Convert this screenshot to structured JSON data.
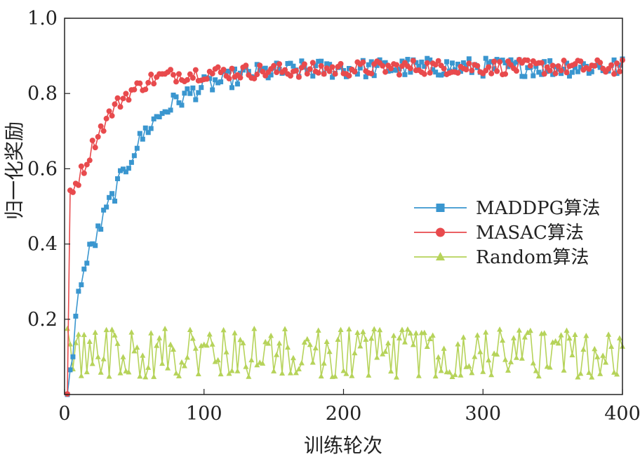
{
  "chart_data": {
    "type": "line",
    "xlabel": "训练轮次",
    "ylabel": "归一化奖励",
    "xlim": [
      0,
      400
    ],
    "ylim": [
      0,
      1.0
    ],
    "xticks": [
      {
        "value": 0,
        "label": "0"
      },
      {
        "value": 100,
        "label": "100"
      },
      {
        "value": 200,
        "label": "200"
      },
      {
        "value": 300,
        "label": "300"
      },
      {
        "value": 400,
        "label": "400"
      }
    ],
    "yticks": [
      {
        "value": 0.2,
        "label": "0.2"
      },
      {
        "value": 0.4,
        "label": "0.4"
      },
      {
        "value": 0.6,
        "label": "0.6"
      },
      {
        "value": 0.8,
        "label": "0.8"
      },
      {
        "value": 1.0,
        "label": "1.0"
      }
    ],
    "legend_position": "right-middle",
    "grid": false,
    "series": [
      {
        "name": "MADDPG算法",
        "color": "#3a96cf",
        "marker": "square",
        "anchors": {
          "x": [
            2,
            4,
            6,
            8,
            10,
            12,
            15,
            18,
            22,
            26,
            30,
            35,
            40,
            45,
            50,
            55,
            60,
            70,
            80,
            90,
            100,
            110,
            120,
            130,
            140,
            160,
            180,
            200,
            250,
            300,
            350,
            400
          ],
          "y": [
            0.0,
            0.05,
            0.12,
            0.2,
            0.26,
            0.31,
            0.34,
            0.38,
            0.41,
            0.45,
            0.49,
            0.53,
            0.57,
            0.61,
            0.65,
            0.68,
            0.71,
            0.75,
            0.78,
            0.8,
            0.82,
            0.83,
            0.84,
            0.85,
            0.855,
            0.86,
            0.865,
            0.865,
            0.87,
            0.87,
            0.87,
            0.87
          ]
        },
        "noise": 0.025
      },
      {
        "name": "MASAC算法",
        "color": "#e84a4d",
        "marker": "circle",
        "anchors": {
          "x": [
            2,
            3,
            5,
            8,
            12,
            16,
            20,
            25,
            30,
            35,
            40,
            45,
            50,
            55,
            60,
            70,
            80,
            100,
            150,
            200,
            250,
            300,
            350,
            400
          ],
          "y": [
            0.0,
            0.53,
            0.55,
            0.56,
            0.59,
            0.62,
            0.66,
            0.7,
            0.73,
            0.76,
            0.78,
            0.8,
            0.81,
            0.82,
            0.835,
            0.845,
            0.85,
            0.855,
            0.86,
            0.865,
            0.87,
            0.87,
            0.87,
            0.87
          ]
        },
        "noise": 0.02
      },
      {
        "name": "Random算法",
        "color": "#b6d35a",
        "marker": "triangle",
        "anchors": {
          "x": [
            2,
            400
          ],
          "y": [
            0.11,
            0.11
          ]
        },
        "noise": 0.065
      }
    ]
  }
}
